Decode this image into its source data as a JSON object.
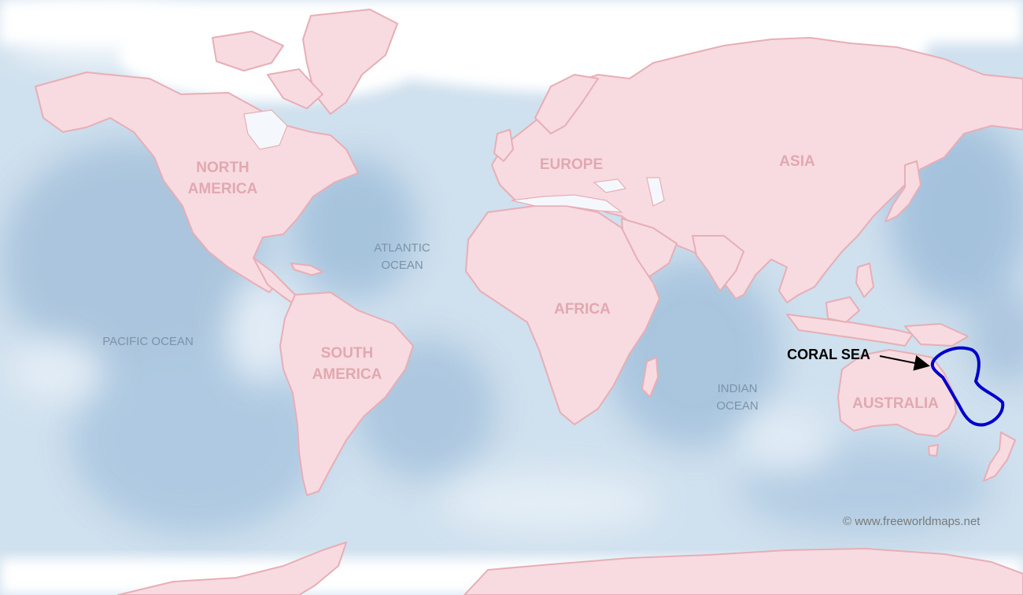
{
  "map": {
    "continents": {
      "north_america": [
        "NORTH",
        "AMERICA"
      ],
      "south_america": [
        "SOUTH",
        "AMERICA"
      ],
      "europe": "EUROPE",
      "asia": "ASIA",
      "africa": "AFRICA",
      "australia": "AUSTRALIA"
    },
    "oceans": {
      "pacific": "PACIFIC OCEAN",
      "atlantic": [
        "ATLANTIC",
        "OCEAN"
      ],
      "indian": [
        "INDIAN",
        "OCEAN"
      ]
    },
    "highlight": {
      "label": "CORAL SEA",
      "outline_color": "#0000cc",
      "arrow_color": "#000000"
    },
    "credit": "© www.freeworldmaps.net",
    "colors": {
      "land": "#f7dbe0",
      "land_edge": "#eaaeb6",
      "ocean_deep": "#a9c6df",
      "ocean_light": "#dbe8f3",
      "ice": "#ffffff"
    }
  }
}
